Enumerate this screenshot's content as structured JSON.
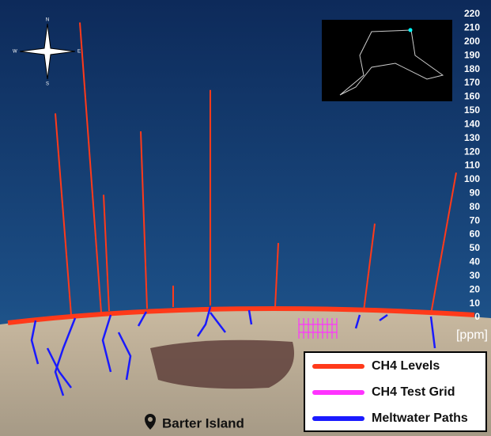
{
  "compass": {
    "n": "N",
    "e": "E",
    "s": "S",
    "w": "W"
  },
  "scale": {
    "ticks": [
      0,
      10,
      20,
      30,
      40,
      50,
      60,
      70,
      80,
      90,
      100,
      110,
      120,
      130,
      140,
      150,
      160,
      170,
      180,
      190,
      200,
      210,
      220
    ],
    "unit": "[ppm]"
  },
  "ch4_peaks": {
    "color": "#ff3a1a",
    "values": [
      148,
      214,
      89,
      135,
      23,
      165,
      54,
      68,
      105
    ]
  },
  "legend": [
    {
      "label": "CH4 Levels",
      "color": "#ff3a1a"
    },
    {
      "label": "CH4 Test Grid",
      "color": "#ff33ff"
    },
    {
      "label": "Meltwater Paths",
      "color": "#1a1aff"
    }
  ],
  "place": "Barter Island"
}
